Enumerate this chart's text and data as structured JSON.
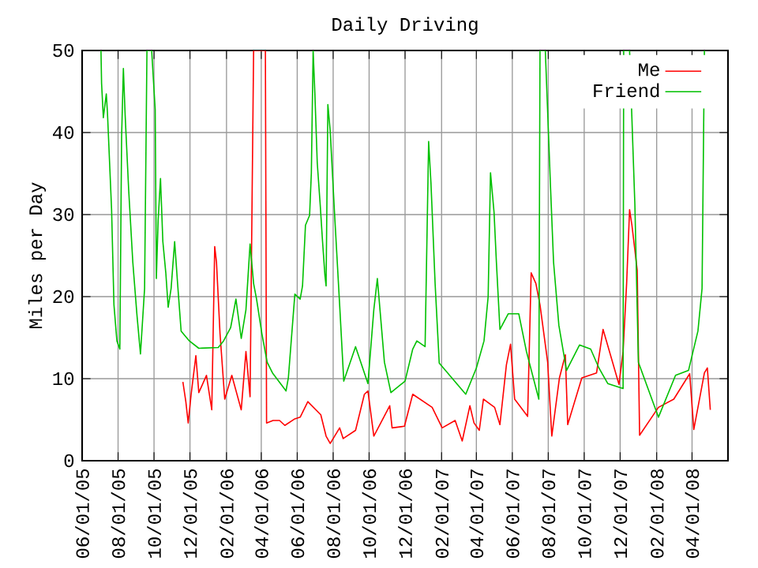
{
  "chart_data": {
    "type": "line",
    "title": "Daily Driving",
    "ylabel": "Miles per Day",
    "xlim": [
      "2005-06-01",
      "2008-06-01"
    ],
    "xticks": [
      {
        "value": "2005-06-01",
        "label": "06/01/05"
      },
      {
        "value": "2005-08-01",
        "label": "08/01/05"
      },
      {
        "value": "2005-10-01",
        "label": "10/01/05"
      },
      {
        "value": "2005-12-01",
        "label": "12/01/05"
      },
      {
        "value": "2006-02-01",
        "label": "02/01/06"
      },
      {
        "value": "2006-04-01",
        "label": "04/01/06"
      },
      {
        "value": "2006-06-01",
        "label": "06/01/06"
      },
      {
        "value": "2006-08-01",
        "label": "08/01/06"
      },
      {
        "value": "2006-10-01",
        "label": "10/01/06"
      },
      {
        "value": "2006-12-01",
        "label": "12/01/06"
      },
      {
        "value": "2007-02-01",
        "label": "02/01/07"
      },
      {
        "value": "2007-04-01",
        "label": "04/01/07"
      },
      {
        "value": "2007-06-01",
        "label": "06/01/07"
      },
      {
        "value": "2007-08-01",
        "label": "08/01/07"
      },
      {
        "value": "2007-10-01",
        "label": "10/01/07"
      },
      {
        "value": "2007-12-01",
        "label": "12/01/07"
      },
      {
        "value": "2008-02-01",
        "label": "02/01/08"
      },
      {
        "value": "2008-04-01",
        "label": "04/01/08"
      }
    ],
    "ylim": [
      0,
      50
    ],
    "yticks": [
      0,
      10,
      20,
      30,
      40,
      50
    ],
    "grid": true,
    "legend": "top right",
    "series": [
      {
        "name": "Me",
        "color": "#ff0000",
        "x": [
          "2005-11-19",
          "2005-11-24",
          "2005-11-28",
          "2005-12-03",
          "2005-12-11",
          "2005-12-16",
          "2005-12-29",
          "2006-01-07",
          "2006-01-12",
          "2006-01-15",
          "2006-01-21",
          "2006-01-29",
          "2006-02-10",
          "2006-02-26",
          "2006-03-06",
          "2006-03-13",
          "2006-03-19",
          "2006-04-08",
          "2006-04-10",
          "2006-04-21",
          "2006-05-02",
          "2006-05-11",
          "2006-05-28",
          "2006-06-06",
          "2006-06-19",
          "2006-07-11",
          "2006-07-20",
          "2006-07-27",
          "2006-08-12",
          "2006-08-18",
          "2006-09-08",
          "2006-09-23",
          "2006-09-29",
          "2006-10-09",
          "2006-11-05",
          "2006-11-09",
          "2006-11-30",
          "2006-12-14",
          "2007-01-16",
          "2007-02-02",
          "2007-02-24",
          "2007-03-08",
          "2007-03-21",
          "2007-03-28",
          "2007-04-06",
          "2007-04-13",
          "2007-05-02",
          "2007-05-11",
          "2007-05-22",
          "2007-05-29",
          "2007-06-05",
          "2007-06-27",
          "2007-07-03",
          "2007-07-11",
          "2007-07-18",
          "2007-07-31",
          "2007-08-07",
          "2007-08-20",
          "2007-08-30",
          "2007-09-03",
          "2007-09-27",
          "2007-10-22",
          "2007-11-02",
          "2007-11-29",
          "2007-12-06",
          "2007-12-12",
          "2007-12-17",
          "2007-12-21",
          "2007-12-30",
          "2008-01-03",
          "2008-02-04",
          "2008-03-01",
          "2008-03-28",
          "2008-04-04",
          "2008-04-22",
          "2008-04-27",
          "2008-05-02"
        ],
        "values": [
          9.6,
          7.2,
          4.6,
          8.1,
          12.8,
          8.3,
          10.4,
          6.2,
          26.1,
          24.2,
          15.5,
          7.5,
          10.4,
          6.2,
          13.3,
          7.8,
          50,
          50,
          4.6,
          4.9,
          4.9,
          4.3,
          5.1,
          5.3,
          7.2,
          5.6,
          3,
          2.1,
          4,
          2.7,
          3.7,
          8.1,
          8.5,
          3,
          6.7,
          4,
          4.2,
          8.1,
          6.5,
          4,
          4.9,
          2.4,
          6.7,
          4.6,
          3.7,
          7.5,
          6.5,
          4.4,
          11.7,
          14.2,
          7.5,
          5.4,
          22.9,
          21.6,
          19,
          12,
          3,
          10.1,
          12.9,
          4.4,
          10.1,
          10.7,
          16,
          9.3,
          13.3,
          21.6,
          30.6,
          28.7,
          23.2,
          3.1,
          6.5,
          7.5,
          10.6,
          3.8,
          10.7,
          11.3,
          6.2
        ]
      },
      {
        "name": "Friend",
        "color": "#00c000",
        "x": [
          "2005-07-03",
          "2005-07-04",
          "2005-07-07",
          "2005-07-12",
          "2005-07-14",
          "2005-07-21",
          "2005-07-25",
          "2005-07-30",
          "2005-08-04",
          "2005-08-07",
          "2005-08-10",
          "2005-08-13",
          "2005-08-19",
          "2005-08-26",
          "2005-09-02",
          "2005-09-08",
          "2005-09-15",
          "2005-09-19",
          "2005-09-27",
          "2005-10-03",
          "2005-10-05",
          "2005-10-08",
          "2005-10-12",
          "2005-10-16",
          "2005-10-21",
          "2005-10-25",
          "2005-10-30",
          "2005-11-05",
          "2005-11-10",
          "2005-11-16",
          "2005-11-30",
          "2005-12-16",
          "2006-01-18",
          "2006-01-27",
          "2006-02-08",
          "2006-02-17",
          "2006-02-26",
          "2006-03-06",
          "2006-03-13",
          "2006-03-19",
          "2006-03-24",
          "2006-04-02",
          "2006-04-11",
          "2006-04-20",
          "2006-05-13",
          "2006-05-17",
          "2006-05-28",
          "2006-06-06",
          "2006-06-10",
          "2006-06-15",
          "2006-06-22",
          "2006-06-25",
          "2006-06-28",
          "2006-07-01",
          "2006-07-05",
          "2006-07-10",
          "2006-07-14",
          "2006-07-18",
          "2006-07-20",
          "2006-07-23",
          "2006-07-27",
          "2006-08-03",
          "2006-08-12",
          "2006-08-19",
          "2006-09-08",
          "2006-09-29",
          "2006-10-09",
          "2006-10-15",
          "2006-10-21",
          "2006-10-27",
          "2006-11-07",
          "2006-12-01",
          "2006-12-14",
          "2006-12-21",
          "2007-01-04",
          "2007-01-10",
          "2007-01-14",
          "2007-01-21",
          "2007-01-28",
          "2007-03-14",
          "2007-04-01",
          "2007-04-14",
          "2007-04-21",
          "2007-04-25",
          "2007-05-01",
          "2007-05-05",
          "2007-05-11",
          "2007-05-25",
          "2007-06-12",
          "2007-06-25",
          "2007-07-16",
          "2007-07-18",
          "2007-07-27",
          "2007-08-05",
          "2007-08-10",
          "2007-08-19",
          "2007-09-01",
          "2007-09-23",
          "2007-10-12",
          "2007-10-26",
          "2007-11-10",
          "2007-12-06",
          "2007-12-07",
          "2007-12-17",
          "2007-12-26",
          "2008-01-01",
          "2008-02-04",
          "2008-03-04",
          "2008-03-26",
          "2008-04-11",
          "2008-04-18",
          "2008-04-22"
        ],
        "values": [
          50,
          46,
          41.8,
          44.7,
          42.4,
          30.6,
          19,
          14.6,
          13.6,
          39.5,
          47.8,
          42.1,
          33,
          24.2,
          17.8,
          13,
          21,
          50,
          50,
          42.8,
          22.2,
          29.3,
          34.4,
          26.7,
          22.9,
          18.7,
          21,
          26.7,
          21.6,
          15.8,
          14.6,
          13.7,
          13.8,
          14.6,
          16.2,
          19.7,
          14.9,
          18.4,
          26.4,
          21.6,
          19.7,
          15.5,
          12,
          10.7,
          8.5,
          10.1,
          20.3,
          19.7,
          21.3,
          28.7,
          29.9,
          35.1,
          50,
          44.7,
          36.3,
          31.2,
          26.7,
          22.6,
          21.3,
          43.4,
          40.2,
          30.6,
          19,
          9.7,
          13.9,
          9.4,
          18.4,
          22.2,
          17.1,
          12,
          8.3,
          9.7,
          13.6,
          14.6,
          13.9,
          38.9,
          33.8,
          21.6,
          11.9,
          8.1,
          11.3,
          14.6,
          20,
          35.1,
          30.3,
          24.2,
          16,
          17.9,
          17.9,
          13.3,
          7.5,
          50,
          50,
          33.1,
          24.2,
          16.5,
          11,
          14.1,
          13.6,
          11.3,
          9.4,
          8.8,
          50,
          50,
          31.2,
          12,
          5.3,
          10.4,
          11,
          15.8,
          21,
          50
        ]
      }
    ]
  }
}
